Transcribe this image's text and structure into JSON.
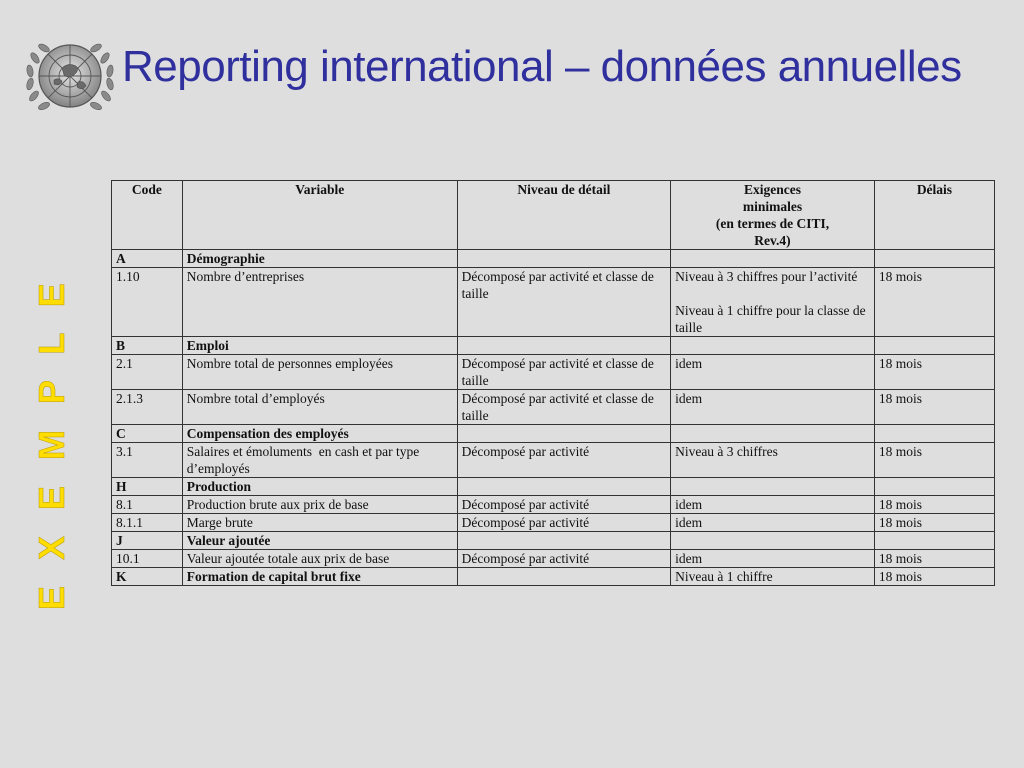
{
  "slide": {
    "title": "Reporting international – données annuelles",
    "side_label": "E X E M P L E",
    "logo_icon": "un-emblem-icon",
    "colors": {
      "title": "#2f2f9e",
      "side_label": "#ffdd00",
      "background": "#dedede"
    }
  },
  "table": {
    "headers": {
      "code": "Code",
      "variable": "Variable",
      "niveau": "Niveau de détail",
      "exigences_line1": "Exigences",
      "exigences_line2": "minimales",
      "exigences_line3": "(en termes de CITI,",
      "exigences_line4": "Rev.4)",
      "delais": "Délais"
    },
    "rows": [
      {
        "code": "A",
        "variable": "Démographie",
        "niveau": "",
        "exigences": "",
        "exigences2": "",
        "delais": ""
      },
      {
        "code": "1.10",
        "variable": "Nombre d’entreprises",
        "niveau": "Décomposé par activité et classe de taille",
        "exigences": "Niveau à 3 chiffres pour l’activité",
        "exigences2": "Niveau à 1 chiffre pour la classe de taille",
        "delais": "18 mois"
      },
      {
        "code": "B",
        "variable": "Emploi",
        "niveau": "",
        "exigences": "",
        "exigences2": "",
        "delais": ""
      },
      {
        "code": "2.1",
        "variable": "Nombre total de personnes employées",
        "niveau": "Décomposé par activité et classe de taille",
        "exigences": "idem",
        "exigences2": "",
        "delais": "18 mois"
      },
      {
        "code": "2.1.3",
        "variable": "Nombre total d’employés",
        "niveau": "Décomposé par activité et classe de taille",
        "exigences": "idem",
        "exigences2": "",
        "delais": "18 mois"
      },
      {
        "code": "C",
        "variable": "Compensation des employés",
        "niveau": "",
        "exigences": "",
        "exigences2": "",
        "delais": ""
      },
      {
        "code": "3.1",
        "variable": "Salaires et émoluments  en cash et par type d’employés",
        "niveau": "Décomposé par activité",
        "exigences": "Niveau à 3 chiffres",
        "exigences2": "",
        "delais": "18 mois"
      },
      {
        "code": "H",
        "variable": "Production",
        "niveau": "",
        "exigences": "",
        "exigences2": "",
        "delais": ""
      },
      {
        "code": "8.1",
        "variable": "Production brute aux prix de base",
        "niveau": "Décomposé par activité",
        "exigences": "idem",
        "exigences2": "",
        "delais": "18 mois"
      },
      {
        "code": "8.1.1",
        "variable": "Marge brute",
        "niveau": "Décomposé par activité",
        "exigences": "idem",
        "exigences2": "",
        "delais": "18 mois"
      },
      {
        "code": "J",
        "variable": "Valeur ajoutée",
        "niveau": "",
        "exigences": "",
        "exigences2": "",
        "delais": ""
      },
      {
        "code": "10.1",
        "variable": "Valeur ajoutée totale aux prix de base",
        "niveau": "Décomposé par activité",
        "exigences": "idem",
        "exigences2": "",
        "delais": "18 mois"
      },
      {
        "code": "K",
        "variable": "Formation de capital brut fixe",
        "niveau": "",
        "exigences": "Niveau à 1 chiffre",
        "exigences2": "",
        "delais": "18 mois"
      }
    ]
  }
}
